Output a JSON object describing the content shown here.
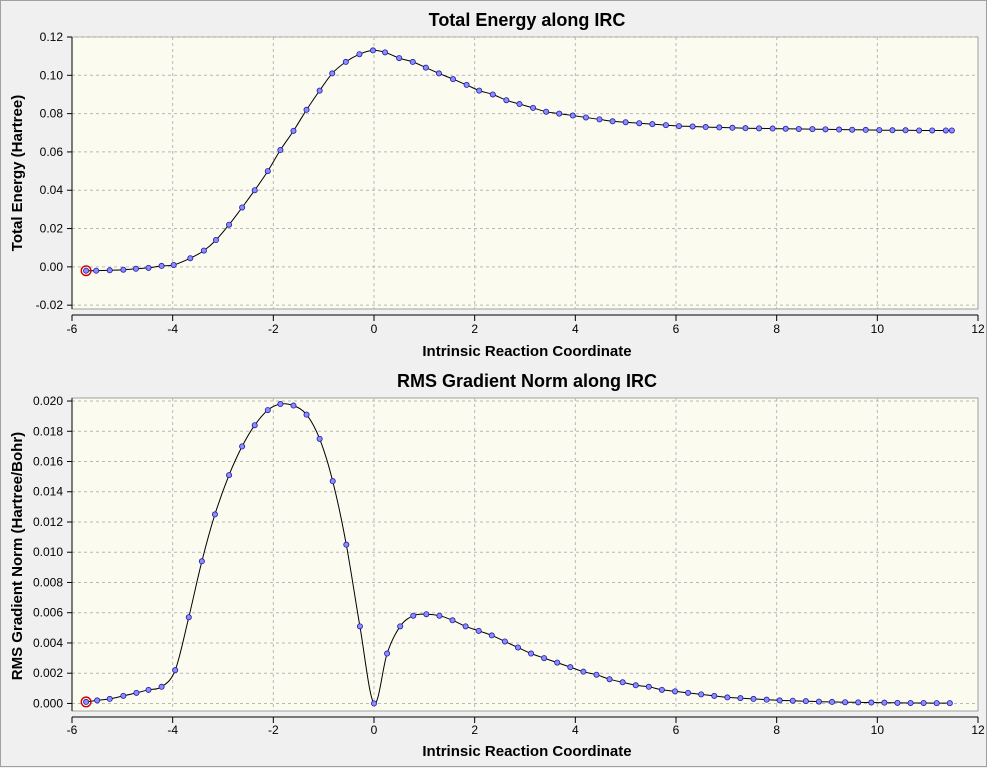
{
  "chart_data": [
    {
      "type": "line",
      "title": "Total Energy along IRC",
      "xlabel": "Intrinsic Reaction Coordinate",
      "ylabel": "Total Energy (Hartree)",
      "xlim": [
        -6,
        12
      ],
      "ylim": [
        -0.022,
        0.12
      ],
      "xticks": [
        -6,
        -4,
        -2,
        0,
        2,
        4,
        6,
        8,
        10,
        12
      ],
      "xtick_labels": [
        "-6",
        "-4",
        "-2",
        "0",
        "2",
        "4",
        "6",
        "8",
        "10",
        "12"
      ],
      "yticks": [
        -0.02,
        0.0,
        0.02,
        0.04,
        0.06,
        0.08,
        0.1,
        0.12
      ],
      "ytick_labels": [
        "-0.02",
        "0.00",
        "0.02",
        "0.04",
        "0.06",
        "0.08",
        "0.10",
        "0.12"
      ],
      "grid": true,
      "highlighted_point_index": 0,
      "x": [
        -5.72,
        -5.52,
        -5.25,
        -4.98,
        -4.73,
        -4.48,
        -4.22,
        -3.98,
        -3.65,
        -3.38,
        -3.14,
        -2.88,
        -2.62,
        -2.37,
        -2.11,
        -1.86,
        -1.6,
        -1.34,
        -1.08,
        -0.83,
        -0.56,
        -0.29,
        -0.02,
        0.22,
        0.5,
        0.77,
        1.03,
        1.29,
        1.57,
        1.84,
        2.09,
        2.36,
        2.63,
        2.89,
        3.16,
        3.42,
        3.68,
        3.95,
        4.21,
        4.48,
        4.74,
        5.0,
        5.27,
        5.53,
        5.8,
        6.06,
        6.33,
        6.59,
        6.86,
        7.12,
        7.38,
        7.65,
        7.92,
        8.18,
        8.44,
        8.71,
        8.97,
        9.24,
        9.5,
        9.77,
        10.04,
        10.3,
        10.56,
        10.83,
        11.09,
        11.36,
        11.48
      ],
      "y": [
        -0.002,
        -0.002,
        -0.0018,
        -0.0015,
        -0.001,
        -0.0005,
        0.0005,
        0.001,
        0.0045,
        0.0085,
        0.014,
        0.022,
        0.031,
        0.04,
        0.05,
        0.061,
        0.071,
        0.082,
        0.092,
        0.101,
        0.107,
        0.111,
        0.113,
        0.112,
        0.109,
        0.107,
        0.104,
        0.101,
        0.098,
        0.095,
        0.092,
        0.09,
        0.087,
        0.085,
        0.083,
        0.081,
        0.08,
        0.079,
        0.078,
        0.077,
        0.076,
        0.0755,
        0.075,
        0.0745,
        0.074,
        0.0735,
        0.0733,
        0.073,
        0.0728,
        0.0726,
        0.0724,
        0.0723,
        0.0722,
        0.0721,
        0.072,
        0.0719,
        0.0718,
        0.0717,
        0.0716,
        0.0715,
        0.0714,
        0.0713,
        0.0713,
        0.0712,
        0.0712,
        0.0712,
        0.0712
      ]
    },
    {
      "type": "line",
      "title": "RMS Gradient Norm along IRC",
      "xlabel": "Intrinsic Reaction Coordinate",
      "ylabel": "RMS Gradient Norm (Hartree/Bohr)",
      "xlim": [
        -6,
        12
      ],
      "ylim": [
        -0.0005,
        0.0202
      ],
      "xticks": [
        -6,
        -4,
        -2,
        0,
        2,
        4,
        6,
        8,
        10,
        12
      ],
      "xtick_labels": [
        "-6",
        "-4",
        "-2",
        "0",
        "2",
        "4",
        "6",
        "8",
        "10",
        "12"
      ],
      "yticks": [
        0.0,
        0.002,
        0.004,
        0.006,
        0.008,
        0.01,
        0.012,
        0.014,
        0.016,
        0.018,
        0.02
      ],
      "ytick_labels": [
        "0.000",
        "0.002",
        "0.004",
        "0.006",
        "0.008",
        "0.010",
        "0.012",
        "0.014",
        "0.016",
        "0.018",
        "0.020"
      ],
      "grid": true,
      "highlighted_point_index": 0,
      "x": [
        -5.72,
        -5.5,
        -5.25,
        -4.98,
        -4.72,
        -4.48,
        -4.22,
        -3.95,
        -3.68,
        -3.42,
        -3.16,
        -2.88,
        -2.62,
        -2.37,
        -2.11,
        -1.86,
        -1.6,
        -1.34,
        -1.08,
        -0.82,
        -0.55,
        -0.28,
        0.0,
        0.26,
        0.52,
        0.78,
        1.04,
        1.3,
        1.56,
        1.82,
        2.08,
        2.34,
        2.6,
        2.86,
        3.12,
        3.38,
        3.64,
        3.9,
        4.16,
        4.42,
        4.68,
        4.94,
        5.2,
        5.46,
        5.72,
        5.98,
        6.24,
        6.5,
        6.76,
        7.02,
        7.28,
        7.54,
        7.8,
        8.06,
        8.32,
        8.58,
        8.84,
        9.1,
        9.36,
        9.62,
        9.88,
        10.14,
        10.4,
        10.66,
        10.92,
        11.18,
        11.44
      ],
      "y": [
        0.0001,
        0.0002,
        0.0003,
        0.0005,
        0.0007,
        0.0009,
        0.0011,
        0.0022,
        0.0057,
        0.0094,
        0.0125,
        0.0151,
        0.017,
        0.0184,
        0.0194,
        0.0198,
        0.0197,
        0.0191,
        0.0175,
        0.0147,
        0.0105,
        0.0051,
        0.0,
        0.0033,
        0.0051,
        0.0058,
        0.0059,
        0.0058,
        0.0055,
        0.0051,
        0.0048,
        0.0045,
        0.0041,
        0.0037,
        0.0033,
        0.003,
        0.0027,
        0.0024,
        0.0021,
        0.0019,
        0.0016,
        0.0014,
        0.0012,
        0.0011,
        0.0009,
        0.0008,
        0.0007,
        0.0006,
        0.0005,
        0.0004,
        0.00035,
        0.0003,
        0.00025,
        0.0002,
        0.00018,
        0.00015,
        0.00012,
        0.0001,
        8e-05,
        7e-05,
        6e-05,
        5e-05,
        4e-05,
        3e-05,
        3e-05,
        2e-05,
        2e-05
      ]
    }
  ],
  "colors": {
    "plot_background": "#fbfbf0",
    "marker_fill": "#8c8cff",
    "marker_stroke": "#1e1ea0",
    "highlight_marker": "#d00000",
    "line": "#000000",
    "grid": "#b8b8b8"
  }
}
